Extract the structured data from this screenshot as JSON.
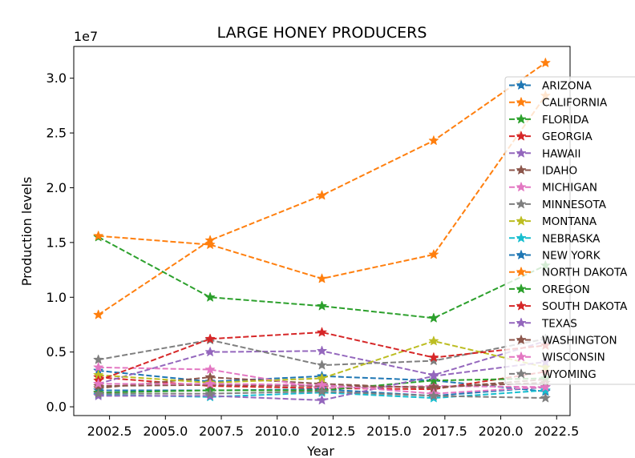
{
  "chart_data": {
    "type": "line",
    "title": "LARGE HONEY PRODUCERS",
    "xlabel": "Year",
    "ylabel": "Production levels",
    "y_offset_label": "1e7",
    "xlim": [
      2000.9,
      2023.1
    ],
    "ylim": [
      -800000,
      32900000
    ],
    "x_ticks": [
      2002.5,
      2005.0,
      2007.5,
      2010.0,
      2012.5,
      2015.0,
      2017.5,
      2020.0,
      2022.5
    ],
    "x_tick_labels": [
      "2002.5",
      "2005.0",
      "2007.5",
      "2010.0",
      "2012.5",
      "2015.0",
      "2017.5",
      "2020.0",
      "2022.5"
    ],
    "y_ticks": [
      0,
      5000000,
      10000000,
      15000000,
      20000000,
      25000000,
      30000000
    ],
    "y_tick_labels": [
      "0.0",
      "0.5",
      "1.0",
      "1.5",
      "2.0",
      "2.5",
      "3.0"
    ],
    "legend_position": "right",
    "grid": false,
    "x": [
      2002,
      2007,
      2012,
      2017,
      2022
    ],
    "series": [
      {
        "name": "ARIZONA",
        "color": "#1f77b4",
        "values": [
          3300000,
          2300000,
          2800000,
          2400000,
          1400000
        ]
      },
      {
        "name": "CALIFORNIA",
        "color": "#ff7f0e",
        "values": [
          8400000,
          15200000,
          19300000,
          24300000,
          31400000
        ]
      },
      {
        "name": "FLORIDA",
        "color": "#2ca02c",
        "values": [
          15500000,
          10000000,
          9200000,
          8100000,
          12900000
        ]
      },
      {
        "name": "GEORGIA",
        "color": "#d62728",
        "values": [
          2700000,
          1900000,
          1700000,
          1600000,
          3200000
        ]
      },
      {
        "name": "HAWAII",
        "color": "#9467bd",
        "values": [
          2100000,
          5000000,
          5100000,
          2900000,
          6000000
        ]
      },
      {
        "name": "IDAHO",
        "color": "#8c564b",
        "values": [
          1700000,
          2700000,
          2100000,
          1700000,
          2500000
        ]
      },
      {
        "name": "MICHIGAN",
        "color": "#e377c2",
        "values": [
          3600000,
          3400000,
          1700000,
          1900000,
          1800000
        ]
      },
      {
        "name": "MINNESOTA",
        "color": "#7f7f7f",
        "values": [
          4300000,
          6100000,
          3800000,
          4200000,
          6200000
        ]
      },
      {
        "name": "MONTANA",
        "color": "#bcbd22",
        "values": [
          2900000,
          2200000,
          2600000,
          6000000,
          3600000
        ]
      },
      {
        "name": "NEBRASKA",
        "color": "#17becf",
        "values": [
          1100000,
          900000,
          1300000,
          800000,
          1500000
        ]
      },
      {
        "name": "NEW YORK",
        "color": "#1f77b4",
        "values": [
          1500000,
          1500000,
          1600000,
          1000000,
          1800000
        ]
      },
      {
        "name": "NORTH DAKOTA",
        "color": "#ff7f0e",
        "values": [
          15600000,
          14800000,
          11700000,
          13900000,
          28400000
        ]
      },
      {
        "name": "OREGON",
        "color": "#2ca02c",
        "values": [
          1300000,
          1500000,
          1500000,
          2400000,
          2600000
        ]
      },
      {
        "name": "SOUTH DAKOTA",
        "color": "#d62728",
        "values": [
          2400000,
          6200000,
          6800000,
          4500000,
          5600000
        ]
      },
      {
        "name": "TEXAS",
        "color": "#9467bd",
        "values": [
          1000000,
          1000000,
          600000,
          2800000,
          4100000
        ]
      },
      {
        "name": "WASHINGTON",
        "color": "#8c564b",
        "values": [
          1900000,
          2000000,
          1900000,
          1800000,
          2200000
        ]
      },
      {
        "name": "WISCONSIN",
        "color": "#e377c2",
        "values": [
          2100000,
          2100000,
          2000000,
          1200000,
          1800000
        ]
      },
      {
        "name": "WYOMING",
        "color": "#7f7f7f",
        "values": [
          1200000,
          1200000,
          1400000,
          1000000,
          800000
        ]
      }
    ]
  }
}
